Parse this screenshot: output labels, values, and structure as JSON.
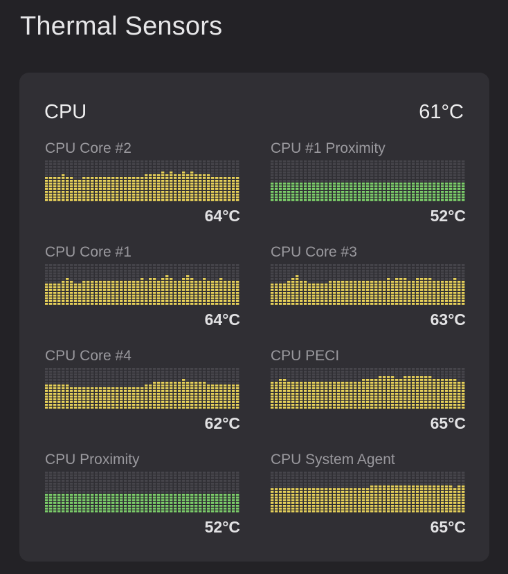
{
  "page": {
    "title": "Thermal Sensors"
  },
  "group": {
    "title": "CPU",
    "value": "61°C"
  },
  "colors": {
    "background": "#232226",
    "card": "#302f34",
    "cell_empty": "#46454b",
    "warm": "#e8d25a",
    "cool": "#7ccf6a"
  },
  "graph": {
    "rows": 15,
    "cols": 47
  },
  "sensors": [
    {
      "name": "CPU Core #2",
      "value": "64°C",
      "color": "warm",
      "levels": [
        9,
        9,
        9,
        9,
        10,
        9,
        9,
        8,
        8,
        9,
        9,
        9,
        9,
        9,
        9,
        9,
        9,
        9,
        9,
        9,
        9,
        9,
        9,
        9,
        10,
        10,
        10,
        10,
        11,
        10,
        11,
        10,
        10,
        11,
        10,
        11,
        10,
        10,
        10,
        10,
        9,
        9,
        9,
        9,
        9,
        9,
        9
      ]
    },
    {
      "name": "CPU #1 Proximity",
      "value": "52°C",
      "color": "cool",
      "levels": [
        7,
        7,
        7,
        7,
        7,
        7,
        7,
        7,
        7,
        7,
        7,
        7,
        7,
        7,
        7,
        7,
        7,
        7,
        7,
        7,
        7,
        7,
        7,
        7,
        7,
        7,
        7,
        7,
        7,
        7,
        7,
        7,
        7,
        7,
        7,
        7,
        7,
        7,
        7,
        7,
        7,
        7,
        7,
        7,
        7,
        7,
        7
      ]
    },
    {
      "name": "CPU Core #1",
      "value": "64°C",
      "color": "warm",
      "levels": [
        8,
        8,
        8,
        8,
        9,
        10,
        9,
        8,
        8,
        9,
        9,
        9,
        9,
        9,
        9,
        9,
        9,
        9,
        9,
        9,
        9,
        9,
        9,
        10,
        9,
        10,
        10,
        9,
        10,
        11,
        10,
        9,
        9,
        10,
        11,
        10,
        9,
        9,
        10,
        9,
        9,
        9,
        10,
        9,
        9,
        9,
        9
      ]
    },
    {
      "name": "CPU Core #3",
      "value": "63°C",
      "color": "warm",
      "levels": [
        8,
        8,
        8,
        8,
        9,
        10,
        11,
        9,
        9,
        8,
        8,
        8,
        8,
        8,
        9,
        9,
        9,
        9,
        9,
        9,
        9,
        9,
        9,
        9,
        9,
        9,
        9,
        9,
        10,
        9,
        10,
        10,
        10,
        9,
        9,
        10,
        10,
        10,
        10,
        9,
        9,
        9,
        9,
        9,
        10,
        9,
        9
      ]
    },
    {
      "name": "CPU Core #4",
      "value": "62°C",
      "color": "warm",
      "levels": [
        9,
        9,
        9,
        9,
        9,
        9,
        8,
        8,
        8,
        8,
        8,
        8,
        8,
        8,
        8,
        8,
        8,
        8,
        8,
        8,
        8,
        8,
        8,
        8,
        9,
        9,
        10,
        10,
        10,
        10,
        10,
        10,
        10,
        11,
        10,
        10,
        10,
        10,
        10,
        9,
        9,
        9,
        9,
        9,
        9,
        9,
        9
      ]
    },
    {
      "name": "CPU PECI",
      "value": "65°C",
      "color": "warm",
      "levels": [
        10,
        10,
        11,
        11,
        10,
        10,
        10,
        10,
        10,
        10,
        10,
        10,
        10,
        10,
        10,
        10,
        10,
        10,
        10,
        10,
        10,
        10,
        11,
        11,
        11,
        11,
        12,
        12,
        12,
        12,
        11,
        11,
        12,
        12,
        12,
        12,
        12,
        12,
        12,
        11,
        11,
        11,
        11,
        11,
        11,
        10,
        10
      ]
    },
    {
      "name": "CPU Proximity",
      "value": "52°C",
      "color": "cool",
      "levels": [
        7,
        7,
        7,
        7,
        7,
        7,
        7,
        7,
        7,
        7,
        7,
        7,
        7,
        7,
        7,
        7,
        7,
        7,
        7,
        7,
        7,
        7,
        7,
        7,
        7,
        7,
        7,
        7,
        7,
        7,
        7,
        7,
        7,
        7,
        7,
        7,
        7,
        7,
        7,
        7,
        7,
        7,
        7,
        7,
        7,
        7,
        7
      ]
    },
    {
      "name": "CPU System Agent",
      "value": "65°C",
      "color": "warm",
      "levels": [
        9,
        9,
        9,
        9,
        9,
        9,
        9,
        9,
        9,
        9,
        9,
        9,
        9,
        9,
        9,
        9,
        9,
        9,
        9,
        9,
        9,
        9,
        9,
        9,
        10,
        10,
        10,
        10,
        10,
        10,
        10,
        10,
        10,
        10,
        10,
        10,
        10,
        10,
        10,
        10,
        10,
        10,
        10,
        10,
        9,
        10,
        10
      ]
    }
  ]
}
